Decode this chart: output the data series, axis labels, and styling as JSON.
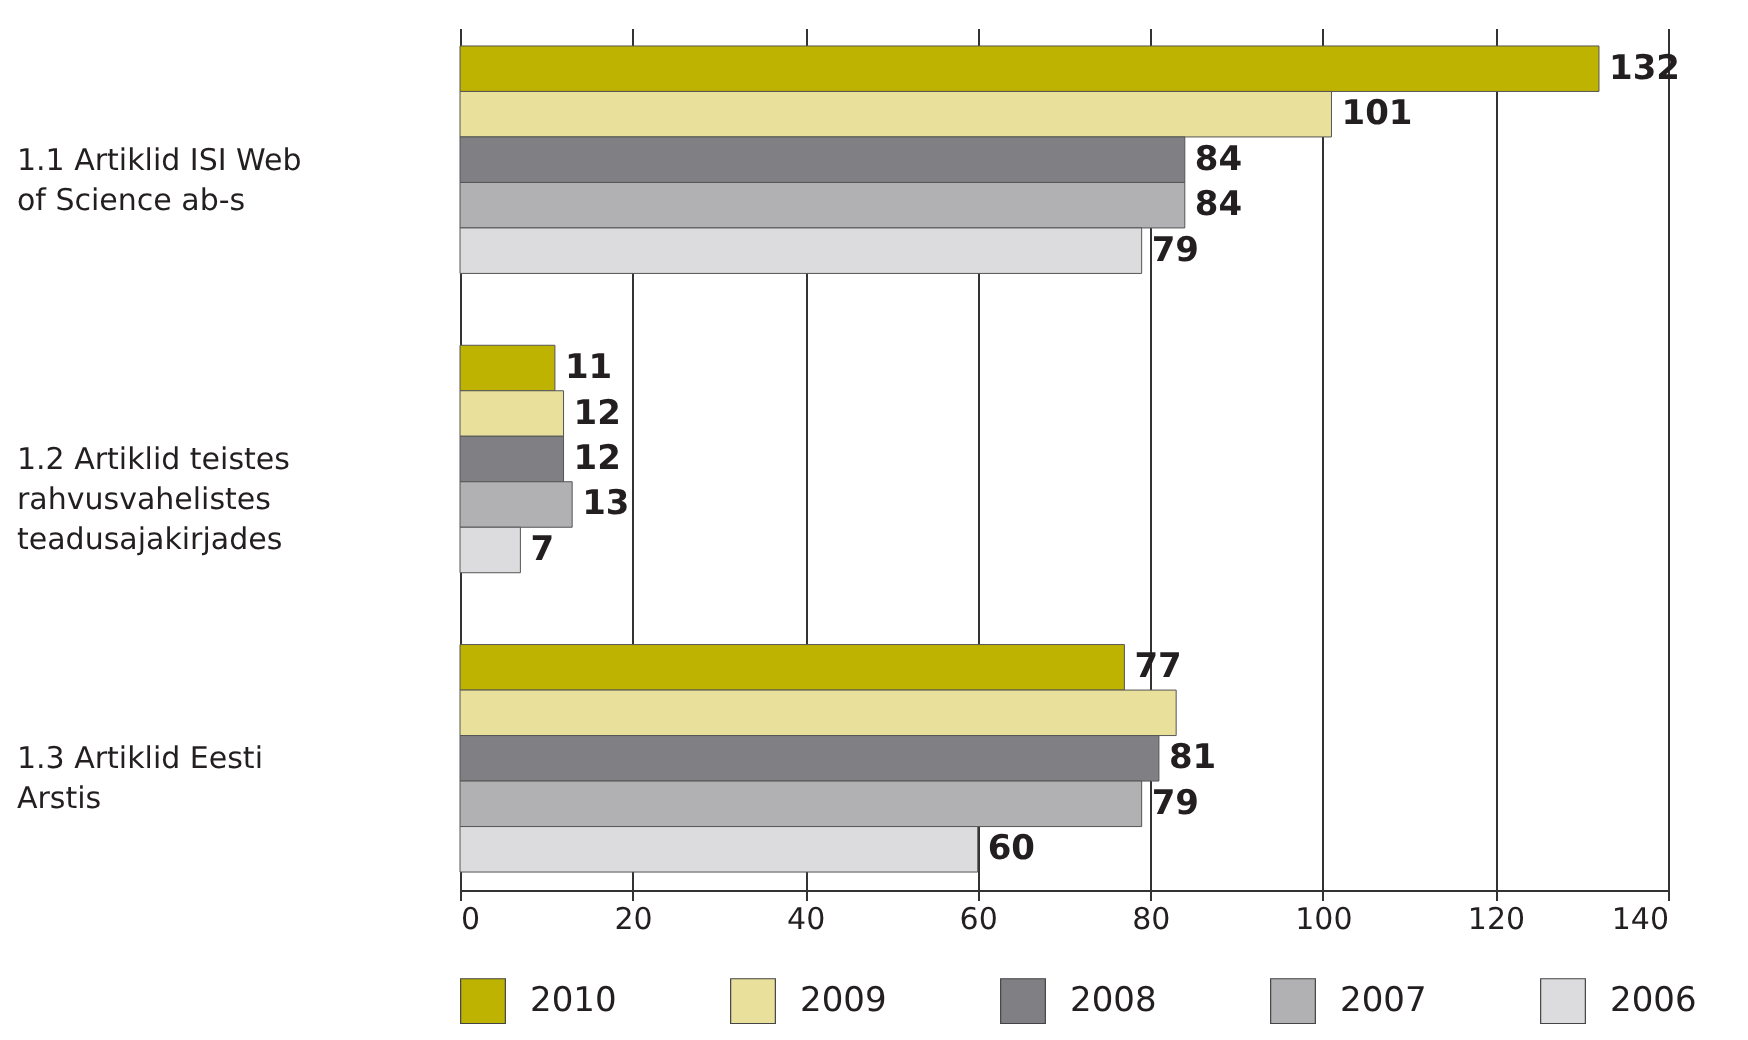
{
  "chart_data": {
    "type": "bar",
    "orientation": "horizontal",
    "categories": [
      "1.1  Artiklid ISI Web of Science ab-s",
      "1.2  Artiklid teistes rahvusvahelistes teadusajakirjades",
      "1.3  Artiklid Eesti Arstis"
    ],
    "series": [
      {
        "name": "2010",
        "color": "#bdb300",
        "values": [
          132,
          11,
          77
        ],
        "value_labels": [
          "132",
          "11",
          "77"
        ]
      },
      {
        "name": "2009",
        "color": "#e9e09c",
        "values": [
          101,
          12,
          83
        ],
        "value_labels": [
          "101",
          "12",
          null
        ]
      },
      {
        "name": "2008",
        "color": "#808084",
        "values": [
          84,
          12,
          81
        ],
        "value_labels": [
          "84",
          "12",
          "81"
        ]
      },
      {
        "name": "2007",
        "color": "#b1b1b4",
        "values": [
          84,
          13,
          79
        ],
        "value_labels": [
          "84",
          "13",
          "79"
        ]
      },
      {
        "name": "2006",
        "color": "#dcdcde",
        "values": [
          79,
          7,
          60
        ],
        "value_labels": [
          "79",
          "7",
          "60"
        ]
      }
    ],
    "xlim": [
      0,
      140
    ],
    "xticks": [
      0,
      20,
      40,
      60,
      80,
      100,
      120,
      140
    ],
    "grid": "x",
    "legend": "bottom"
  }
}
